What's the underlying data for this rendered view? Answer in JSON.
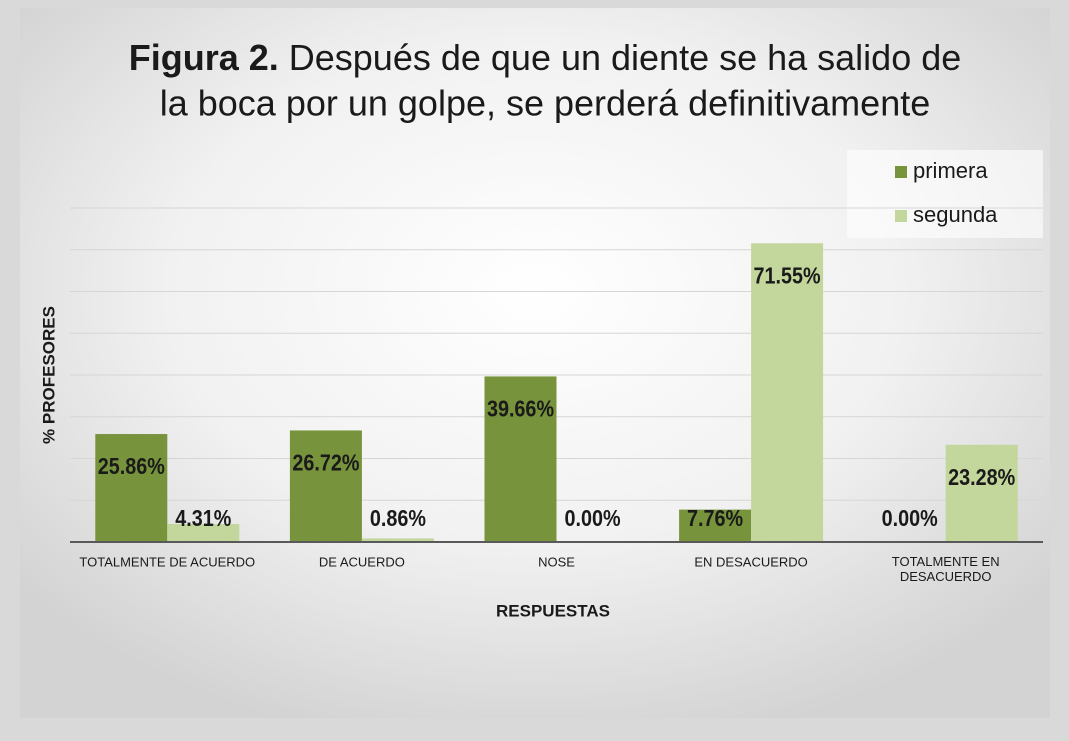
{
  "chart_data": {
    "type": "bar",
    "title_prefix": "Figura 2.",
    "title_lines": [
      "Después de que un diente se ha salido de",
      "la boca por un golpe, se perderá definitivamente"
    ],
    "xlabel": "RESPUESTAS",
    "ylabel": "% PROFESORES",
    "categories": [
      "TOTALMENTE DE ACUERDO",
      "DE ACUERDO",
      "NOSE",
      "EN DESACUERDO",
      "TOTALMENTE EN DESACUERDO"
    ],
    "series": [
      {
        "name": "primera",
        "color": "#77933c",
        "values": [
          25.86,
          26.72,
          39.66,
          7.76,
          0.0
        ],
        "value_labels": [
          "25.86%",
          "26.72%",
          "39.66%",
          "7.76%",
          "0.00%"
        ]
      },
      {
        "name": "segunda",
        "color": "#c3d69b",
        "values": [
          4.31,
          0.86,
          0.0,
          71.55,
          23.28
        ],
        "value_labels": [
          "4.31%",
          "0.86%",
          "0.00%",
          "71.55%",
          "23.28%"
        ]
      }
    ],
    "ylim": [
      0,
      80
    ],
    "gridlines": [
      10,
      20,
      30,
      40,
      50,
      60,
      70,
      80
    ],
    "legend": "top-right"
  }
}
